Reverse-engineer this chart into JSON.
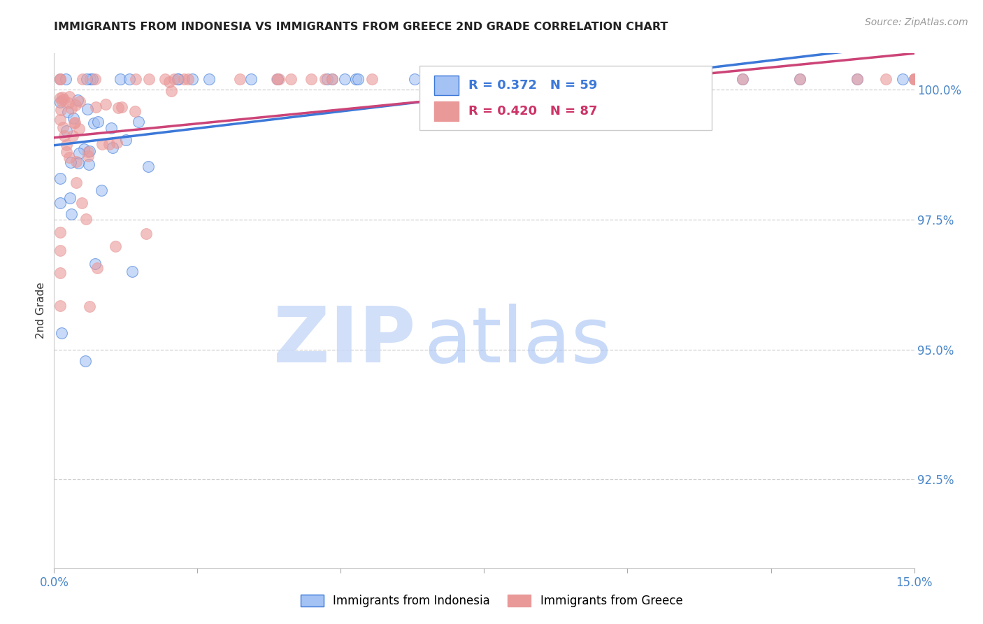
{
  "title": "IMMIGRANTS FROM INDONESIA VS IMMIGRANTS FROM GREECE 2ND GRADE CORRELATION CHART",
  "source": "Source: ZipAtlas.com",
  "ylabel": "2nd Grade",
  "ylabel_right_ticks": [
    "100.0%",
    "97.5%",
    "95.0%",
    "92.5%"
  ],
  "ylabel_right_values": [
    1.0,
    0.975,
    0.95,
    0.925
  ],
  "xmin": 0.0,
  "xmax": 0.15,
  "ymin": 0.908,
  "ymax": 1.007,
  "legend_indonesia": "Immigrants from Indonesia",
  "legend_greece": "Immigrants from Greece",
  "R_indonesia": 0.372,
  "N_indonesia": 59,
  "R_greece": 0.42,
  "N_greece": 87,
  "color_indonesia": "#a4c2f4",
  "color_greece": "#ea9999",
  "color_indonesia_dark": "#3c78d8",
  "color_greece_dark": "#cc3366",
  "color_indonesia_line": "#3c78d8",
  "color_greece_line": "#cc4477",
  "watermark_zip_color": "#c9daf8",
  "watermark_atlas_color": "#a4c2f4"
}
